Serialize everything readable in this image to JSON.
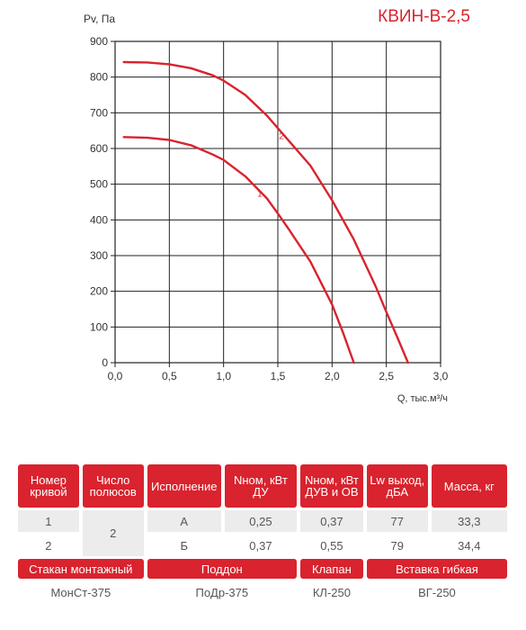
{
  "model": "КВИН-В-2,5",
  "chart_data": {
    "type": "line",
    "ylabel": "Pv, Па",
    "xlabel": "Q, тыс.м³/ч",
    "xlim": [
      0,
      3.0
    ],
    "ylim": [
      0,
      900
    ],
    "x_ticks": [
      "0,0",
      "0,5",
      "1,0",
      "1,5",
      "2,0",
      "2,5",
      "3,0"
    ],
    "y_ticks": [
      "0",
      "100",
      "200",
      "300",
      "400",
      "500",
      "600",
      "700",
      "800",
      "900"
    ],
    "grid": true,
    "series": [
      {
        "name": "1",
        "color": "#d9232e",
        "x": [
          0.08,
          0.3,
          0.5,
          0.7,
          0.9,
          1.0,
          1.2,
          1.4,
          1.5,
          1.6,
          1.8,
          2.0,
          2.1,
          2.2
        ],
        "y": [
          632,
          630,
          624,
          609,
          583,
          568,
          522,
          460,
          418,
          374,
          283,
          163,
          85,
          0
        ]
      },
      {
        "name": "2",
        "color": "#d9232e",
        "x": [
          0.08,
          0.3,
          0.5,
          0.7,
          0.9,
          1.0,
          1.2,
          1.4,
          1.6,
          1.8,
          2.0,
          2.2,
          2.4,
          2.5,
          2.6,
          2.7
        ],
        "y": [
          842,
          841,
          836,
          825,
          805,
          790,
          750,
          692,
          622,
          552,
          455,
          345,
          215,
          142,
          72,
          0
        ]
      }
    ]
  },
  "table": {
    "headers": [
      "Номер кривой",
      "Число полюсов",
      "Исполнение",
      "Nном, кВт ДУ",
      "Nном, кВт ДУВ и ОВ",
      "Lw выход, дБА",
      "Масса, кг"
    ],
    "poles": "2",
    "rows": [
      {
        "curve": "1",
        "version": "А",
        "n_du": "0,25",
        "n_duv": "0,37",
        "lw": "77",
        "mass": "33,3"
      },
      {
        "curve": "2",
        "version": "Б",
        "n_du": "0,37",
        "n_duv": "0,55",
        "lw": "79",
        "mass": "34,4"
      }
    ],
    "accessory_headers": [
      "Стакан монтажный",
      "Поддон",
      "Клапан",
      "Вставка гибкая"
    ],
    "accessory_values": [
      "МонСт-375",
      "ПоДр-375",
      "КЛ-250",
      "ВГ-250"
    ]
  }
}
